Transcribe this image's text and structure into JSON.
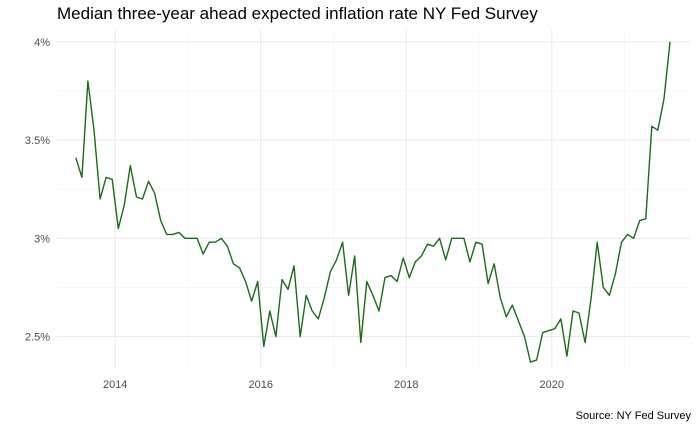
{
  "chart_data": {
    "type": "line",
    "title": "Median three-year ahead expected inflation rate NY Fed Survey",
    "caption": "Source: NY Fed Survey",
    "xlabel": "",
    "ylabel": "",
    "xlim": [
      2013.2,
      2021.9
    ],
    "ylim": [
      2.34,
      4.06
    ],
    "x_ticks": [
      2014,
      2016,
      2018,
      2020
    ],
    "x_tick_labels": [
      "2014",
      "2016",
      "2018",
      "2020"
    ],
    "y_ticks": [
      2.5,
      3.0,
      3.5,
      4.0
    ],
    "y_tick_labels": [
      "2.5%",
      "3%",
      "3.5%",
      "4%"
    ],
    "grid": true,
    "line_color": "#1a6b1a",
    "series": [
      {
        "x": [
          2013.458,
          2013.542,
          2013.625,
          2013.708,
          2013.792,
          2013.875,
          2013.958,
          2014.042,
          2014.125,
          2014.208,
          2014.292,
          2014.375,
          2014.458,
          2014.542,
          2014.625,
          2014.708,
          2014.792,
          2014.875,
          2014.958,
          2015.042,
          2015.125,
          2015.208,
          2015.292,
          2015.375,
          2015.458,
          2015.542,
          2015.625,
          2015.708,
          2015.792,
          2015.875,
          2015.958,
          2016.042,
          2016.125,
          2016.208,
          2016.292,
          2016.375,
          2016.458,
          2016.542,
          2016.625,
          2016.708,
          2016.792,
          2016.875,
          2016.958,
          2017.042,
          2017.125,
          2017.208,
          2017.292,
          2017.375,
          2017.458,
          2017.542,
          2017.625,
          2017.708,
          2017.792,
          2017.875,
          2017.958,
          2018.042,
          2018.125,
          2018.208,
          2018.292,
          2018.375,
          2018.458,
          2018.542,
          2018.625,
          2018.708,
          2018.792,
          2018.875,
          2018.958,
          2019.042,
          2019.125,
          2019.208,
          2019.292,
          2019.375,
          2019.458,
          2019.542,
          2019.625,
          2019.708,
          2019.792,
          2019.875,
          2019.958,
          2020.042,
          2020.125,
          2020.208,
          2020.292,
          2020.375,
          2020.458,
          2020.542,
          2020.625,
          2020.708,
          2020.792,
          2020.875,
          2020.958,
          2021.042,
          2021.125,
          2021.208,
          2021.292,
          2021.375,
          2021.458,
          2021.542,
          2021.625
        ],
        "y": [
          3.41,
          3.31,
          3.8,
          3.55,
          3.2,
          3.31,
          3.3,
          3.05,
          3.17,
          3.37,
          3.21,
          3.2,
          3.29,
          3.23,
          3.09,
          3.02,
          3.02,
          3.03,
          3.0,
          3.0,
          3.0,
          2.92,
          2.98,
          2.98,
          3.0,
          2.96,
          2.87,
          2.85,
          2.78,
          2.68,
          2.78,
          2.45,
          2.63,
          2.5,
          2.79,
          2.74,
          2.86,
          2.5,
          2.71,
          2.63,
          2.59,
          2.7,
          2.83,
          2.89,
          2.98,
          2.71,
          2.91,
          2.47,
          2.78,
          2.71,
          2.63,
          2.8,
          2.81,
          2.78,
          2.9,
          2.8,
          2.88,
          2.91,
          2.97,
          2.96,
          3.0,
          2.89,
          3.0,
          3.0,
          3.0,
          2.88,
          2.98,
          2.97,
          2.77,
          2.87,
          2.7,
          2.6,
          2.66,
          2.58,
          2.5,
          2.37,
          2.38,
          2.52,
          2.53,
          2.54,
          2.59,
          2.4,
          2.63,
          2.62,
          2.47,
          2.7,
          2.98,
          2.75,
          2.71,
          2.82,
          2.98,
          3.02,
          3.0,
          3.09,
          3.1,
          3.57,
          3.55,
          3.71,
          4.0
        ]
      }
    ]
  }
}
